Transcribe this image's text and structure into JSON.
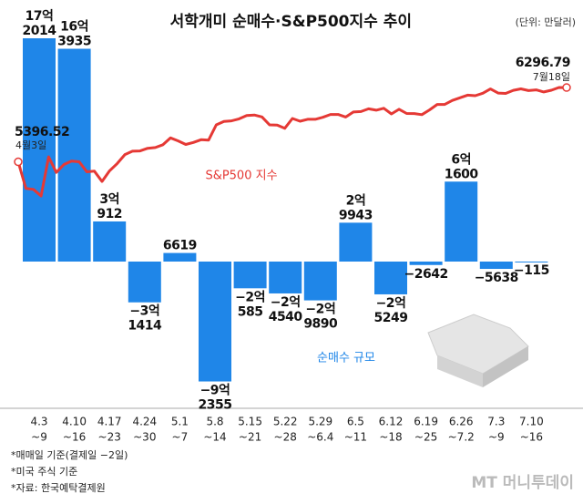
{
  "chart_data": {
    "type": "bar",
    "title": "서학개미 순매수·S&P500지수 추이",
    "subtitle": "(단위: 만달러)",
    "categories": [
      [
        "4.3",
        "~9"
      ],
      [
        "4.10",
        "~16"
      ],
      [
        "4.17",
        "~23"
      ],
      [
        "4.24",
        "~30"
      ],
      [
        "5.1",
        "~7"
      ],
      [
        "5.8",
        "~14"
      ],
      [
        "5.15",
        "~21"
      ],
      [
        "5.22",
        "~28"
      ],
      [
        "5.29",
        "~6.4"
      ],
      [
        "6.5",
        "~11"
      ],
      [
        "6.12",
        "~18"
      ],
      [
        "6.19",
        "~25"
      ],
      [
        "6.26",
        "~7.2"
      ],
      [
        "7.3",
        "~9"
      ],
      [
        "7.10",
        "~16"
      ]
    ],
    "series": [
      {
        "name": "순매수 규모",
        "type": "bar",
        "color": "#1f86e8",
        "values": [
          172014,
          163935,
          30912,
          -31414,
          6619,
          -92355,
          -20585,
          -24540,
          -29890,
          29943,
          -25249,
          -2642,
          61600,
          -5638,
          -115
        ],
        "value_labels": [
          [
            "17억",
            "2014"
          ],
          [
            "16억",
            "3935"
          ],
          [
            "3억",
            "912"
          ],
          [
            "−3억",
            "1414"
          ],
          [
            "6619"
          ],
          [
            "−9억",
            "2355"
          ],
          [
            "−2억",
            "585"
          ],
          [
            "−2억",
            "4540"
          ],
          [
            "−2억",
            "9890"
          ],
          [
            "2억",
            "9943"
          ],
          [
            "−2억",
            "5249"
          ],
          [
            "−2642"
          ],
          [
            "6억",
            "1600"
          ],
          [
            "−5638"
          ],
          [
            "−115"
          ]
        ]
      },
      {
        "name": "S&P500 지수",
        "type": "line",
        "color": "#e53935",
        "x": [
          "4월3일",
          null,
          null,
          null,
          null,
          null,
          null,
          null,
          null,
          null,
          null,
          null,
          null,
          null,
          null,
          null,
          null,
          null,
          null,
          null,
          null,
          null,
          null,
          null,
          null,
          null,
          null,
          null,
          null,
          null,
          null,
          null,
          null,
          null,
          null,
          null,
          null,
          null,
          null,
          null,
          null,
          null,
          null,
          null,
          null,
          null,
          null,
          null,
          null,
          null,
          null,
          null,
          null,
          null,
          null,
          null,
          null,
          null,
          null,
          null,
          null,
          null,
          null,
          null,
          null,
          null,
          null,
          null,
          null,
          null,
          null,
          null,
          "7월18일"
        ],
        "values": [
          5396.52,
          5074.08,
          5062.25,
          4982.77,
          5456.9,
          5268.05,
          5363.36,
          5405.97,
          5396.63,
          5275.7,
          5282.7,
          5158.2,
          5287.76,
          5375.86,
          5484.77,
          5525.21,
          5528.75,
          5560.83,
          5569.06,
          5604.14,
          5686.67,
          5650.38,
          5606.91,
          5631.28,
          5663.94,
          5659.91,
          5844.19,
          5886.55,
          5892.58,
          5916.93,
          5958.38,
          5963.6,
          5940.46,
          5844.61,
          5842.01,
          5802.82,
          5921.54,
          5888.55,
          5912.17,
          5911.69,
          5935.94,
          5970.37,
          5970.81,
          5939.3,
          6000.36,
          6005.88,
          6038.81,
          6022.24,
          6045.26,
          5976.97,
          6033.11,
          5982.72,
          5980.87,
          5967.84,
          6025.17,
          6092.18,
          6092.16,
          6141.02,
          6173.07,
          6204.95,
          6198.01,
          6227.42,
          6279.35,
          6229.98,
          6225.52,
          6263.26,
          6280.46,
          6259.75,
          6268.56,
          6243.76,
          6263.7,
          6297.36,
          6296.79
        ]
      }
    ],
    "notes": [
      "*매매일 기준(결제일 −2일)",
      "*미국 주식 기준",
      "*자료: 한국예탁결제원"
    ],
    "brand": "MT 머니투데이"
  }
}
